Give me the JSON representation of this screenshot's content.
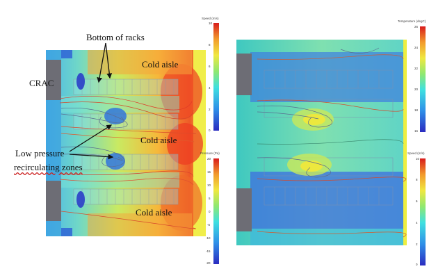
{
  "annotations": {
    "bottom_of_racks": "Bottom of racks",
    "crac": "CRAC",
    "cold_aisle_1": "Cold aisle",
    "cold_aisle_2": "Cold aisle",
    "cold_aisle_3": "Cold aisle",
    "low_pressure_1": "Low pressure",
    "low_pressure_2": "recirculating zones"
  },
  "colorbars": {
    "left_speed": {
      "title": "Speed (m/s)",
      "ticks": [
        "10",
        "8",
        "6",
        "4",
        "2",
        "0"
      ]
    },
    "left_pressure": {
      "title": "Pressure (Pa)",
      "ticks": [
        "20",
        "15",
        "10",
        "5",
        "0",
        "-5",
        "-10",
        "-15",
        "-20"
      ]
    },
    "right_temperature": {
      "title": "Temperature (degC)",
      "ticks": [
        "26",
        "24",
        "22",
        "20",
        "18",
        "16"
      ]
    },
    "right_speed": {
      "title": "Speed (m/s)",
      "ticks": [
        "10",
        "8",
        "6",
        "4",
        "2",
        "0"
      ]
    }
  },
  "colors": {
    "jet_low": "#1a2fbf",
    "jet_mid": "#7fe07a",
    "jet_high": "#d81c1c",
    "crac_unit": "#6d6d75"
  }
}
